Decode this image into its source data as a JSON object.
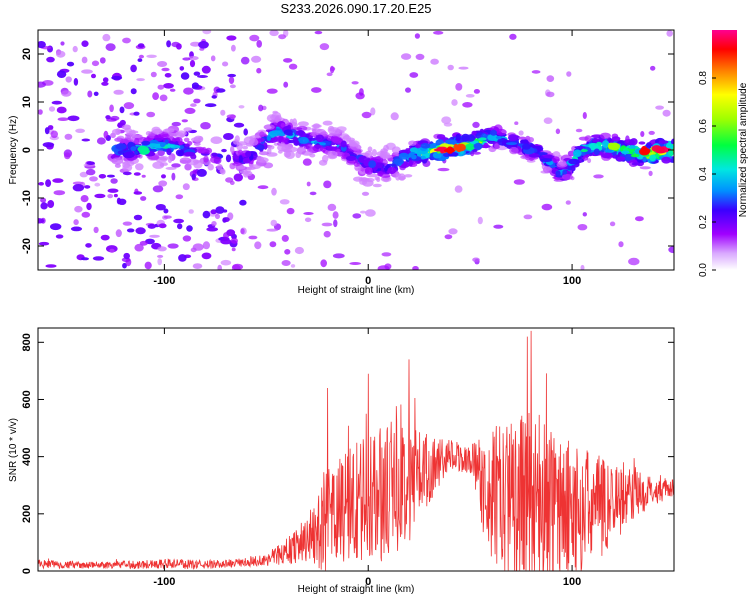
{
  "chart_data": [
    {
      "type": "heatmap",
      "title": "S233.2026.090.17.20.E25",
      "xlabel": "Height of straight line (km)",
      "ylabel": "Frequency (Hz)",
      "xlim": [
        -162,
        150
      ],
      "ylim": [
        -25,
        25
      ],
      "xticks": [
        -100,
        0,
        100
      ],
      "xtick_labels": [
        "-100",
        "0",
        "100"
      ],
      "yticks": [
        -20,
        -10,
        0,
        10,
        20
      ],
      "ytick_labels": [
        "-20",
        "-10",
        "0",
        "10",
        "20"
      ],
      "colorbar": {
        "label": "Normalized spectral amplitude",
        "range": [
          0,
          1
        ],
        "ticks": [
          0,
          0.2,
          0.4,
          0.6,
          0.8
        ],
        "tick_labels": [
          "0.0",
          "0.2",
          "0.4",
          "0.6",
          "0.8"
        ],
        "stops": [
          "#ffffff",
          "#a000ff",
          "#3a00ff",
          "#0090ff",
          "#00e8e0",
          "#00ff40",
          "#a0ff00",
          "#ffff00",
          "#ff8000",
          "#ff0000",
          "#ff0090"
        ]
      },
      "ridge": {
        "x": [
          -120,
          -100,
          -80,
          -60,
          -45,
          -30,
          -15,
          0,
          10,
          20,
          35,
          50,
          60,
          75,
          85,
          95,
          105,
          115,
          125,
          135,
          148
        ],
        "y": [
          0,
          1,
          -1,
          -2,
          4,
          2,
          1,
          -3,
          -4,
          -1,
          0,
          1,
          3,
          1,
          -1,
          -5,
          0,
          1,
          0,
          -1,
          0
        ],
        "peak_amplitude": [
          0.4,
          0.5,
          0.2,
          0.3,
          0.45,
          0.4,
          0.35,
          0.3,
          0.35,
          0.5,
          0.95,
          0.8,
          0.45,
          0.4,
          0.35,
          0.4,
          0.55,
          0.6,
          0.7,
          0.85,
          0.95
        ]
      }
    },
    {
      "type": "line",
      "xlabel": "Height of straight line (km)",
      "ylabel": "SNR (10 * v/v)",
      "xlim": [
        -162,
        150
      ],
      "ylim": [
        0,
        850
      ],
      "xticks": [
        -100,
        0,
        100
      ],
      "xtick_labels": [
        "-100",
        "0",
        "100"
      ],
      "yticks": [
        0,
        200,
        400,
        600,
        800
      ],
      "ytick_labels": [
        "0",
        "200",
        "400",
        "600",
        "800"
      ],
      "series": [
        {
          "name": "SNR",
          "color": "#ee3333",
          "envelope_x": [
            -162,
            -140,
            -120,
            -100,
            -80,
            -60,
            -50,
            -40,
            -30,
            -20,
            -10,
            0,
            10,
            20,
            30,
            40,
            50,
            60,
            70,
            80,
            90,
            100,
            110,
            120,
            130,
            140,
            150
          ],
          "envelope_base": [
            25,
            20,
            22,
            25,
            22,
            30,
            40,
            70,
            110,
            170,
            230,
            250,
            280,
            320,
            360,
            400,
            390,
            260,
            240,
            240,
            220,
            210,
            220,
            240,
            270,
            280,
            290
          ],
          "envelope_amp": [
            15,
            12,
            14,
            18,
            15,
            15,
            25,
            45,
            80,
            180,
            220,
            230,
            240,
            220,
            120,
            60,
            50,
            240,
            300,
            330,
            300,
            240,
            200,
            150,
            90,
            50,
            30
          ],
          "peaks_x": [
            -20,
            0,
            20,
            78,
            80
          ],
          "peaks_y": [
            640,
            690,
            740,
            820,
            840
          ]
        }
      ]
    }
  ]
}
